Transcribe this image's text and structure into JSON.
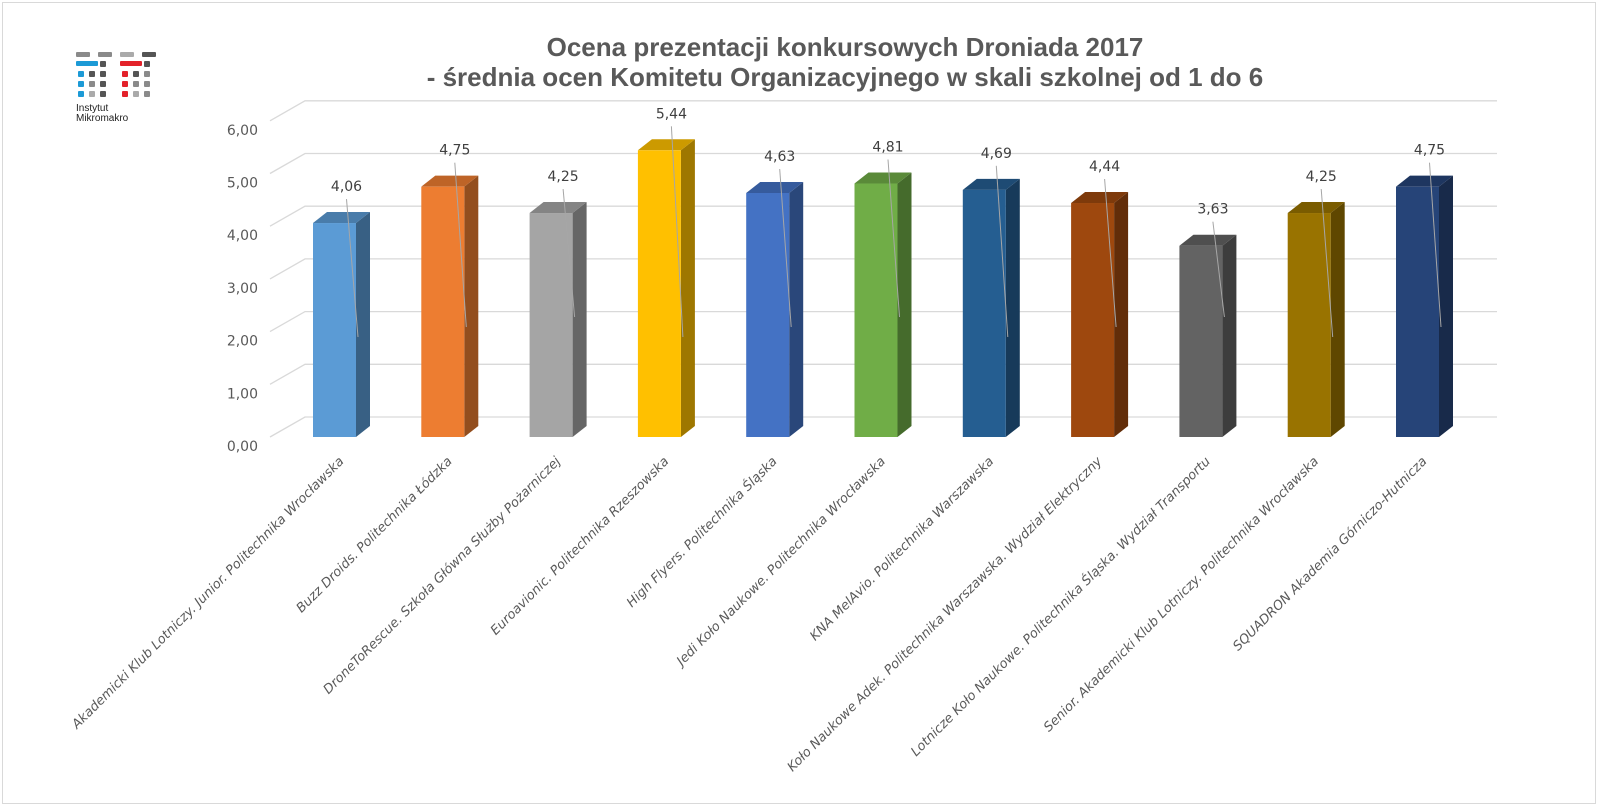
{
  "logo": {
    "line1": "Instytut",
    "line2": "Mikromakro",
    "colors": {
      "blue": "#1c9ad6",
      "red": "#e3222a",
      "gray": "#8a8a8a",
      "dark": "#555555"
    }
  },
  "chart_data": {
    "type": "bar3d",
    "title": "Ocena prezentacji konkursowych Droniada 2017",
    "subtitle": "- średnia ocen Komitetu Organizacyjnego w skali szkolnej od 1 do 6",
    "ylim": [
      0,
      6
    ],
    "yticks": [
      "0,00",
      "1,00",
      "2,00",
      "3,00",
      "4,00",
      "5,00",
      "6,00"
    ],
    "grid": true,
    "categories": [
      "Akademicki Klub Lotniczy. Junior. Politechnika Wrocławska",
      "Buzz Droids. Politechnika Łódzka",
      "DroneToRescue. Szkoła Główna Służby Pożarniczej",
      "Euroavionic. Politechnika Rzeszowska",
      "High Flyers. Politechnika Śląska",
      "Jedi Koło Naukowe. Politechnika Wrocławska",
      "KNA MelAvio. Politechnika Warszawska",
      "Koło Naukowe Adek. Politechnika Warszawska. Wydział Elektryczny",
      "Lotnicze Koło Naukowe. Politechnika Śląska. Wydział Transportu",
      "Senior. Akademicki Klub Lotniczy. Politechnika Wrocławska",
      "SQUADRON Akademia Górniczo-Hutnicza"
    ],
    "values": [
      4.06,
      4.75,
      4.25,
      5.44,
      4.63,
      4.81,
      4.69,
      4.44,
      3.63,
      4.25,
      4.75
    ],
    "data_labels": [
      "4,06",
      "4,75",
      "4,25",
      "5,44",
      "4,63",
      "4,81",
      "4,69",
      "4,44",
      "3,63",
      "4,25",
      "4,75"
    ],
    "colors": [
      "#5B9BD5",
      "#ED7D31",
      "#A5A5A5",
      "#FFC000",
      "#4472C4",
      "#70AD47",
      "#255E91",
      "#9E480E",
      "#636363",
      "#997300",
      "#264478"
    ]
  }
}
